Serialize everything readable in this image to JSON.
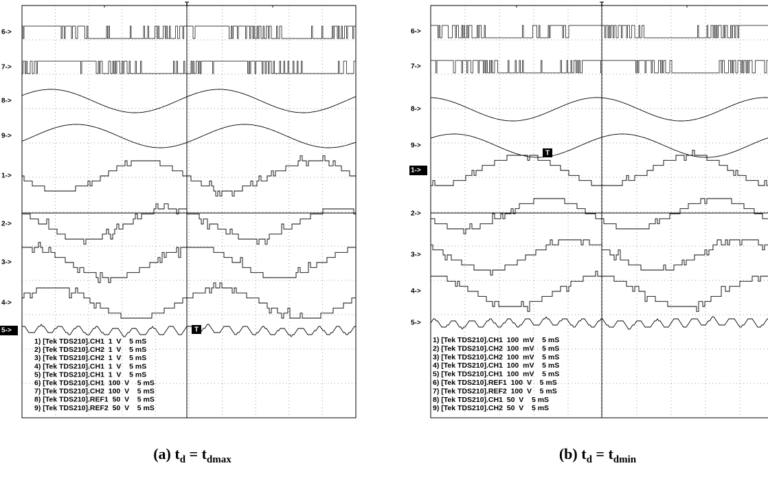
{
  "panels": [
    {
      "channels": [
        "6->",
        "7->",
        "8->",
        "9->",
        "1->",
        "2->",
        "3->",
        "4->",
        "5->"
      ],
      "top_marker": "T",
      "box_marker": "T",
      "legend": [
        "1) [Tek TDS210].CH1  1  V    5 mS",
        "2) [Tek TDS210].CH2  1  V    5 mS",
        "3) [Tek TDS210].CH2  1  V    5 mS",
        "4) [Tek TDS210].CH1  1  V    5 mS",
        "5) [Tek TDS210].CH1  1  V    5 mS",
        "6) [Tek TDS210].CH1  100  V    5 mS",
        "7) [Tek TDS210].CH2  100  V    5 mS",
        "8) [Tek TDS210].REF1  50  V    5 mS",
        "9) [Tek TDS210].REF2  50  V    5 mS"
      ],
      "caption": {
        "prefix": "(a) t",
        "sub1": "d",
        "mid": " = t",
        "sub2": "dmax"
      }
    },
    {
      "channels": [
        "6->",
        "7->",
        "8->",
        "9->",
        "1->",
        "2->",
        "3->",
        "4->",
        "5->"
      ],
      "top_marker": "T",
      "box_marker": "T",
      "legend": [
        "1) [Tek TDS210].CH1  100  mV    5 mS",
        "2) [Tek TDS210].CH2  100  mV    5 mS",
        "3) [Tek TDS210].CH2  100  mV    5 mS",
        "4) [Tek TDS210].CH1  100  mV    5 mS",
        "5) [Tek TDS210].CH1  100  mV    5 mS",
        "6) [Tek TDS210].REF1  100  V    5 mS",
        "7) [Tek TDS210].REF2  100  V    5 mS",
        "8) [Tek TDS210].CH1  50  V    5 mS",
        "9) [Tek TDS210].CH2  50  V    5 mS"
      ],
      "caption": {
        "prefix": "(b) t",
        "sub1": "d",
        "mid": " = t",
        "sub2": "dmin"
      }
    }
  ]
}
